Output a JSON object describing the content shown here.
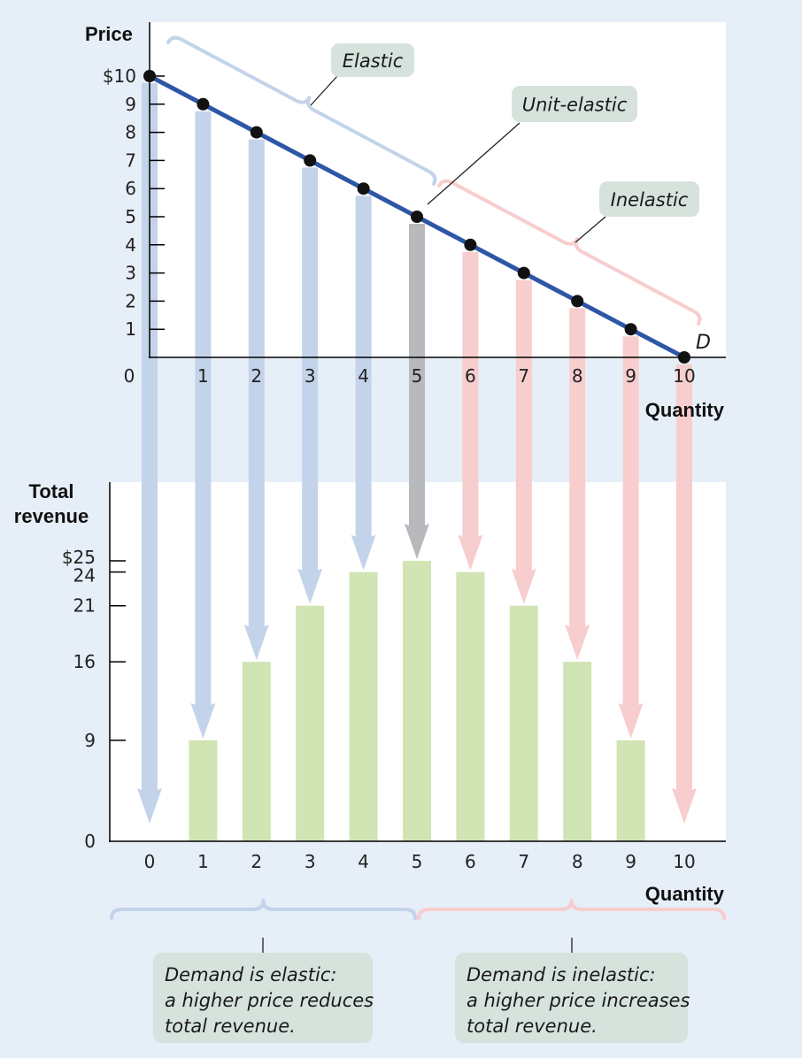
{
  "chart_data": [
    {
      "type": "line",
      "ylabel": "Price",
      "xlabel": "Quantity",
      "x": [
        0,
        1,
        2,
        3,
        4,
        5,
        6,
        7,
        8,
        9,
        10
      ],
      "y": [
        10,
        9,
        8,
        7,
        6,
        5,
        4,
        3,
        2,
        1,
        0
      ],
      "x_ticks": [
        "0",
        "1",
        "2",
        "3",
        "4",
        "5",
        "6",
        "7",
        "8",
        "9",
        "10"
      ],
      "y_ticks": [
        {
          "value": 10,
          "label": "$10"
        },
        {
          "value": 9,
          "label": "9"
        },
        {
          "value": 8,
          "label": "8"
        },
        {
          "value": 7,
          "label": "7"
        },
        {
          "value": 6,
          "label": "6"
        },
        {
          "value": 5,
          "label": "5"
        },
        {
          "value": 4,
          "label": "4"
        },
        {
          "value": 3,
          "label": "3"
        },
        {
          "value": 2,
          "label": "2"
        },
        {
          "value": 1,
          "label": "1"
        }
      ],
      "xlim": [
        0,
        10
      ],
      "ylim": [
        0,
        10
      ],
      "curve_label": "D",
      "annotations": {
        "elastic": "Elastic",
        "unit_elastic": "Unit-elastic",
        "inelastic": "Inelastic"
      }
    },
    {
      "type": "bar",
      "ylabel_lines": [
        "Total",
        "revenue"
      ],
      "xlabel": "Quantity",
      "categories": [
        "0",
        "1",
        "2",
        "3",
        "4",
        "5",
        "6",
        "7",
        "8",
        "9",
        "10"
      ],
      "values": [
        0,
        9,
        16,
        21,
        24,
        25,
        24,
        21,
        16,
        9,
        0
      ],
      "y_ticks": [
        {
          "value": 25,
          "label": "$25"
        },
        {
          "value": 24,
          "label": "24"
        },
        {
          "value": 21,
          "label": "21"
        },
        {
          "value": 16,
          "label": "16"
        },
        {
          "value": 9,
          "label": "9"
        },
        {
          "value": 0,
          "label": "0"
        }
      ],
      "ylim": [
        0,
        25
      ]
    }
  ],
  "notes": {
    "elastic_lines": [
      "Demand is elastic:",
      "a higher price reduces",
      "total revenue."
    ],
    "inelastic_lines": [
      "Demand is inelastic:",
      "a higher price increases",
      "total revenue."
    ]
  },
  "colors": {
    "demand_line": "#2e56a6",
    "elastic": "#c3d3ea",
    "unit": "#b7b9bd",
    "inelastic": "#f8cdcd",
    "bar": "#d0e4b4",
    "background": "#e6eef8"
  }
}
